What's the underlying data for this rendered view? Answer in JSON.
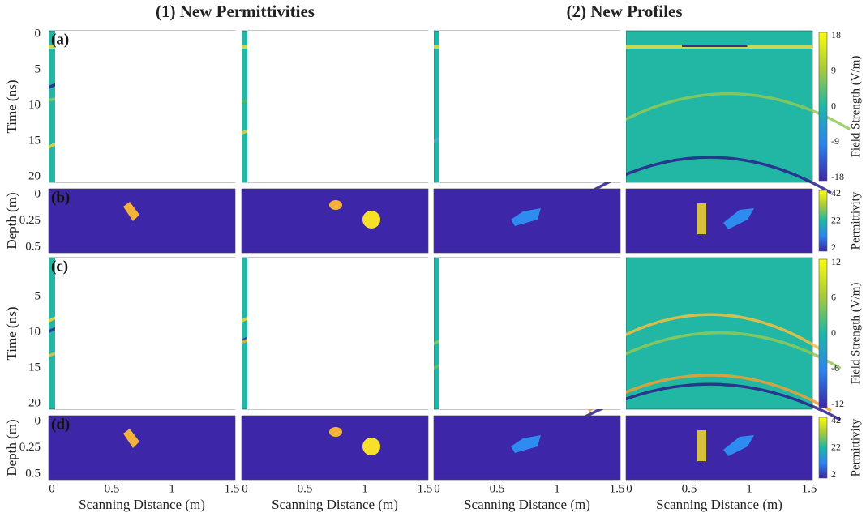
{
  "column_titles": [
    "(1) New Permittivities",
    "(2) New Profiles"
  ],
  "x_axis_label": "Scanning Distance (m)",
  "x_ticks": [
    "0",
    "0.5",
    "1",
    "1.5"
  ],
  "rows": [
    {
      "panel": "(a)",
      "y_label": "Time (ns)",
      "y_ticks": [
        "0",
        "5",
        "10",
        "15",
        "20"
      ],
      "colorbar_label": "Field Strength (V/m)",
      "colorbar_ticks": [
        "18",
        "9",
        "0",
        "-9",
        "-18"
      ]
    },
    {
      "panel": "(b)",
      "y_label": "Depth (m)",
      "y_ticks": [
        "0",
        "0.25",
        "0.5"
      ],
      "colorbar_label": "Permittivity",
      "colorbar_ticks": [
        "42",
        "22",
        "2"
      ]
    },
    {
      "panel": "(c)",
      "y_label": "Time (ns)",
      "y_ticks": [
        "5",
        "10",
        "15",
        "20"
      ],
      "colorbar_label": "Field Strength (V/m)",
      "colorbar_ticks": [
        "12",
        "6",
        "0",
        "-6",
        "-12"
      ]
    },
    {
      "panel": "(d)",
      "y_label": "Depth (m)",
      "y_ticks": [
        "0",
        "0.25",
        "0.5"
      ],
      "colorbar_label": "Permittivity",
      "colorbar_ticks": [
        "42",
        "22",
        "2"
      ]
    }
  ]
}
